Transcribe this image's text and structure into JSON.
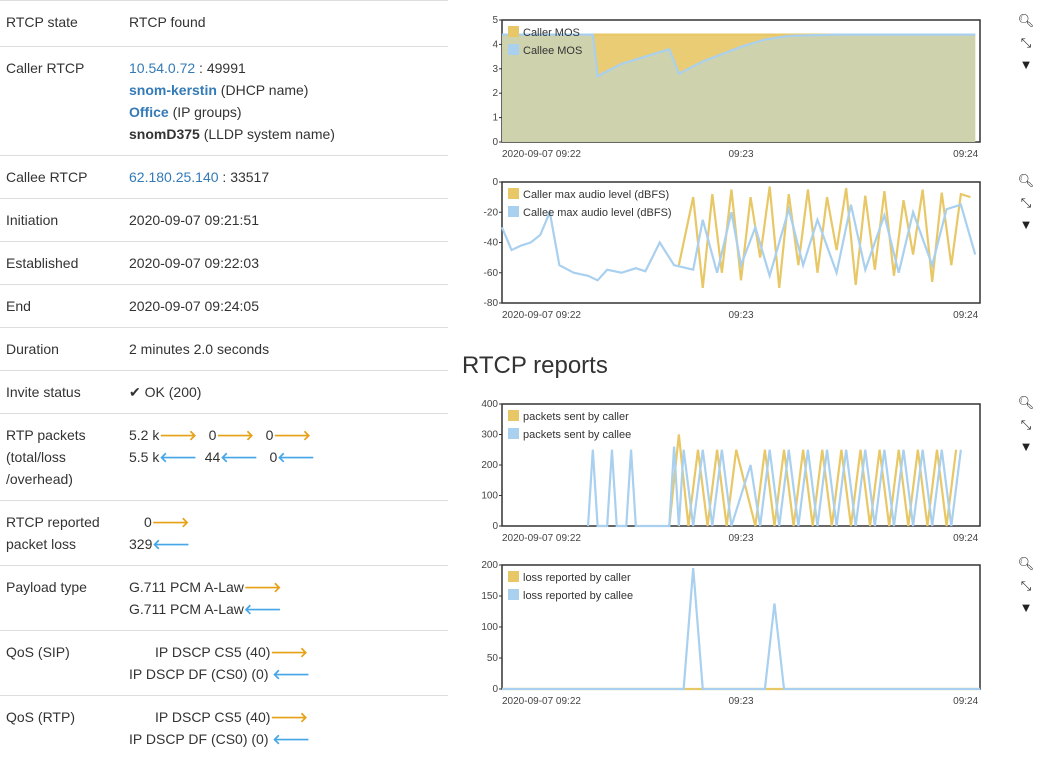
{
  "details": {
    "rtcp_state": {
      "label": "RTCP state",
      "value": "RTCP found"
    },
    "caller_rtcp": {
      "label": "Caller RTCP",
      "ip": "10.54.0.72",
      "port": " : 49991",
      "dhcp_name": "snom-kerstin",
      "dhcp_suffix": " (DHCP name)",
      "ip_group": "Office",
      "ip_group_suffix": " (IP groups)",
      "lldp_name": "snomD375",
      "lldp_suffix": " (LLDP system name)"
    },
    "callee_rtcp": {
      "label": "Callee RTCP",
      "ip": "62.180.25.140",
      "port": " : 33517"
    },
    "initiation": {
      "label": "Initiation",
      "value": "2020-09-07 09:21:51"
    },
    "established": {
      "label": "Established",
      "value": "2020-09-07 09:22:03"
    },
    "end": {
      "label": "End",
      "value": "2020-09-07 09:24:05"
    },
    "duration": {
      "label": "Duration",
      "value": "2 minutes 2.0 seconds"
    },
    "invite_status": {
      "label": "Invite status",
      "value": "OK (200)"
    },
    "rtp_packets": {
      "label_1": "RTP packets",
      "label_2": "(total/loss",
      "label_3": "/overhead)",
      "out_total": "5.2 k",
      "out_loss": "0",
      "out_overhead": "0",
      "in_total": "5.5 k",
      "in_loss": "44",
      "in_overhead": "0"
    },
    "rtcp_loss": {
      "label_1": "RTCP reported",
      "label_2": "packet loss",
      "out_value": "0",
      "in_value": "329"
    },
    "payload": {
      "label": "Payload type",
      "out_value": "G.711 PCM A-Law",
      "in_value": "G.711 PCM A-Law"
    },
    "qos_sip": {
      "label": "QoS (SIP)",
      "out_value": "IP DSCP CS5 (40)",
      "in_value": "IP DSCP DF (CS0) (0)"
    },
    "qos_rtp": {
      "label": "QoS (RTP)",
      "out_value": "IP DSCP CS5 (40)",
      "in_value": "IP DSCP DF (CS0) (0)"
    }
  },
  "arrows": {
    "out": "🡒",
    "in": "🡐",
    "check": "✔"
  },
  "section_title": "RTCP reports",
  "toolbar_icons": [
    "magnifier-icon",
    "reset-zoom-icon",
    "chevron-down-icon"
  ],
  "colors": {
    "caller": "#e8c766",
    "callee": "#a9d0ee",
    "overlap": "#c9d3b8"
  },
  "chart_data": [
    {
      "type": "area",
      "x_ticks": [
        "2020-09-07 09:22",
        "09:23",
        "09:24"
      ],
      "ylim": [
        0,
        5
      ],
      "y_ticks": [
        0,
        1,
        2,
        3,
        4,
        5
      ],
      "series": [
        {
          "name": "Caller MOS",
          "x": [
            0.0,
            0.2,
            0.3,
            0.99
          ],
          "values": [
            4.4,
            4.4,
            4.4,
            4.4
          ]
        },
        {
          "name": "Callee MOS",
          "x": [
            0.0,
            0.19,
            0.2,
            0.25,
            0.35,
            0.37,
            0.42,
            0.5,
            0.55,
            0.6,
            0.7,
            0.99
          ],
          "values": [
            4.4,
            4.4,
            2.7,
            3.2,
            3.8,
            2.8,
            3.3,
            3.9,
            4.2,
            4.35,
            4.4,
            4.4
          ]
        }
      ]
    },
    {
      "type": "line",
      "x_ticks": [
        "2020-09-07 09:22",
        "09:23",
        "09:24"
      ],
      "ylim": [
        -80,
        0
      ],
      "y_ticks": [
        0,
        -20,
        -40,
        -60,
        -80
      ],
      "series": [
        {
          "name": "Caller max audio level (dBFS)",
          "x": [
            0.37,
            0.4,
            0.42,
            0.44,
            0.46,
            0.48,
            0.5,
            0.52,
            0.54,
            0.56,
            0.58,
            0.6,
            0.62,
            0.64,
            0.66,
            0.68,
            0.7,
            0.72,
            0.74,
            0.76,
            0.78,
            0.8,
            0.82,
            0.84,
            0.86,
            0.88,
            0.9,
            0.92,
            0.94,
            0.96,
            0.98
          ],
          "values": [
            -55,
            -10,
            -70,
            -8,
            -60,
            -5,
            -65,
            -10,
            -50,
            -3,
            -70,
            -8,
            -55,
            -5,
            -60,
            -10,
            -45,
            -4,
            -68,
            -9,
            -58,
            -6,
            -62,
            -12,
            -48,
            -5,
            -66,
            -7,
            -55,
            -8,
            -10
          ]
        },
        {
          "name": "Callee max audio level (dBFS)",
          "x": [
            0.0,
            0.02,
            0.04,
            0.06,
            0.08,
            0.1,
            0.12,
            0.15,
            0.18,
            0.2,
            0.22,
            0.25,
            0.28,
            0.3,
            0.33,
            0.36,
            0.4,
            0.42,
            0.45,
            0.48,
            0.5,
            0.53,
            0.56,
            0.6,
            0.63,
            0.66,
            0.7,
            0.73,
            0.76,
            0.8,
            0.83,
            0.86,
            0.9,
            0.93,
            0.96,
            0.99
          ],
          "values": [
            -30,
            -45,
            -42,
            -40,
            -35,
            -20,
            -55,
            -60,
            -62,
            -65,
            -58,
            -60,
            -57,
            -59,
            -40,
            -55,
            -58,
            -25,
            -60,
            -20,
            -55,
            -30,
            -62,
            -18,
            -55,
            -25,
            -60,
            -15,
            -58,
            -22,
            -60,
            -20,
            -55,
            -18,
            -15,
            -48
          ]
        }
      ]
    },
    {
      "type": "line",
      "x_ticks": [
        "2020-09-07 09:22",
        "09:23",
        "09:24"
      ],
      "ylim": [
        0,
        400
      ],
      "y_ticks": [
        0,
        100,
        200,
        300,
        400
      ],
      "series": [
        {
          "name": "packets sent by caller",
          "x": [
            0.35,
            0.37,
            0.39,
            0.41,
            0.43,
            0.45,
            0.47,
            0.49,
            0.53,
            0.55,
            0.57,
            0.59,
            0.61,
            0.63,
            0.65,
            0.67,
            0.69,
            0.71,
            0.73,
            0.75,
            0.77,
            0.79,
            0.81,
            0.83,
            0.85,
            0.87,
            0.89,
            0.91,
            0.93,
            0.95
          ],
          "values": [
            0,
            300,
            0,
            250,
            0,
            250,
            0,
            250,
            0,
            250,
            0,
            250,
            0,
            250,
            0,
            250,
            0,
            250,
            0,
            250,
            0,
            250,
            0,
            250,
            0,
            250,
            0,
            250,
            0,
            250
          ]
        },
        {
          "name": "packets sent by callee",
          "x": [
            0.18,
            0.19,
            0.2,
            0.22,
            0.23,
            0.24,
            0.26,
            0.27,
            0.28,
            0.35,
            0.36,
            0.37,
            0.38,
            0.4,
            0.42,
            0.44,
            0.46,
            0.48,
            0.52,
            0.54,
            0.56,
            0.58,
            0.6,
            0.62,
            0.64,
            0.66,
            0.68,
            0.7,
            0.72,
            0.74,
            0.76,
            0.78,
            0.8,
            0.82,
            0.84,
            0.86,
            0.88,
            0.9,
            0.92,
            0.94,
            0.96
          ],
          "values": [
            0,
            250,
            0,
            0,
            250,
            0,
            0,
            250,
            0,
            0,
            260,
            0,
            250,
            0,
            250,
            0,
            250,
            0,
            200,
            0,
            250,
            0,
            250,
            0,
            250,
            0,
            250,
            0,
            250,
            0,
            250,
            0,
            250,
            0,
            250,
            0,
            250,
            0,
            250,
            0,
            250
          ]
        }
      ]
    },
    {
      "type": "line",
      "x_ticks": [
        "2020-09-07 09:22",
        "09:23",
        "09:24"
      ],
      "ylim": [
        0,
        200
      ],
      "y_ticks": [
        0,
        50,
        100,
        150,
        200
      ],
      "series": [
        {
          "name": "loss reported by caller",
          "x": [
            0.0,
            1.0
          ],
          "values": [
            0,
            0
          ]
        },
        {
          "name": "loss reported by callee",
          "x": [
            0.0,
            0.38,
            0.4,
            0.42,
            0.55,
            0.57,
            0.59,
            1.0
          ],
          "values": [
            0,
            0,
            195,
            0,
            0,
            138,
            0,
            0
          ]
        }
      ]
    }
  ]
}
